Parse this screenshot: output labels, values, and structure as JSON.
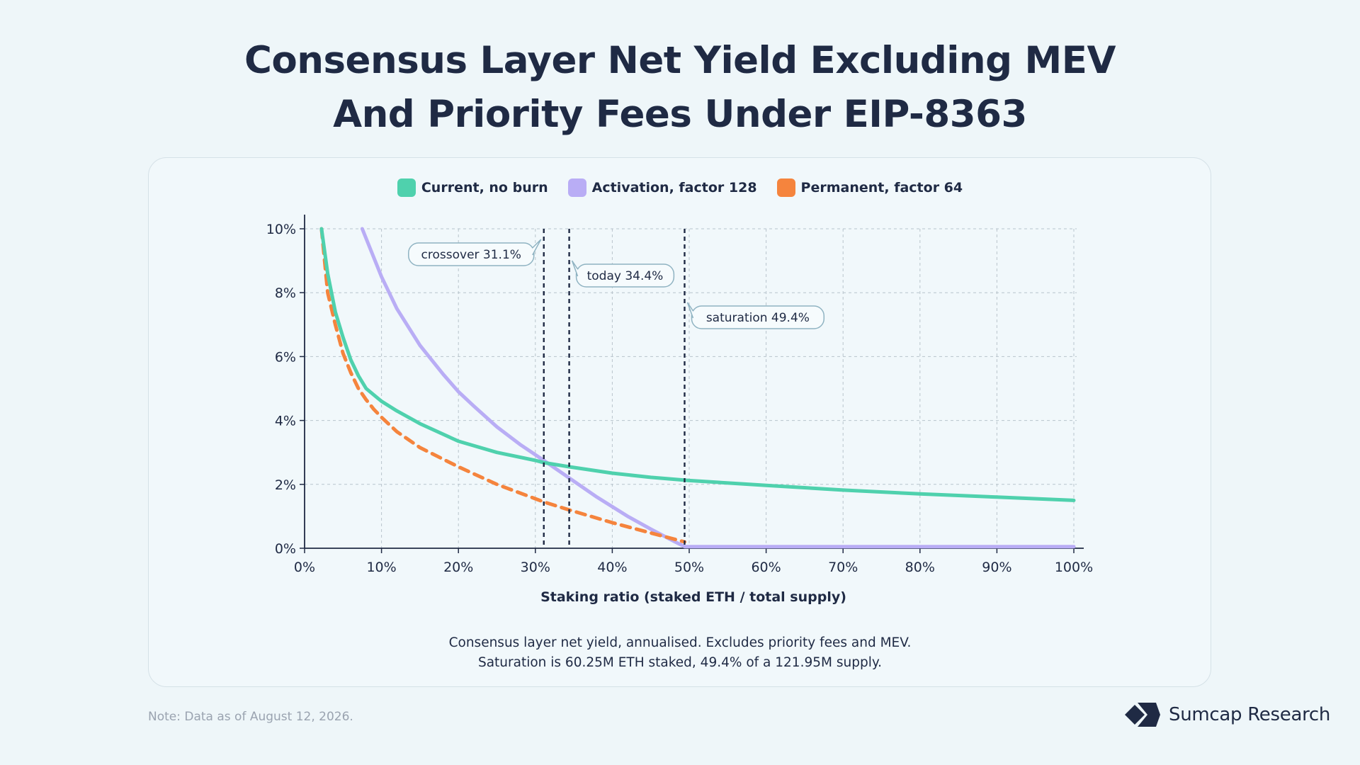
{
  "title": {
    "line1": "Consensus Layer Net Yield Excluding MEV",
    "line2": "And Priority Fees Under EIP-8363"
  },
  "colors": {
    "current": "#4fd1ad",
    "activation": "#b9adf5",
    "permanent": "#f5843d",
    "text": "#1f2a44",
    "grid": "#b8c4cc"
  },
  "chart_data": {
    "type": "line",
    "xlabel": "Staking ratio (staked ETH / total supply)",
    "ylabel": "",
    "x_unit": "%",
    "y_unit": "%",
    "xlim": [
      0,
      100
    ],
    "ylim": [
      0,
      10
    ],
    "xticks": [
      "0%",
      "10%",
      "20%",
      "30%",
      "40%",
      "50%",
      "60%",
      "70%",
      "80%",
      "90%",
      "100%"
    ],
    "yticks": [
      "0%",
      "2%",
      "4%",
      "6%",
      "8%",
      "10%"
    ],
    "grid": true,
    "legend_position": "top-center",
    "series": [
      {
        "name": "Current, no burn",
        "style": "solid",
        "color": "#4fd1ad",
        "x": [
          2.2,
          3,
          4,
          5,
          6,
          7,
          8,
          9,
          10,
          12,
          15,
          20,
          25,
          30,
          31.1,
          34.4,
          40,
          45,
          50,
          60,
          70,
          80,
          90,
          100
        ],
        "y": [
          10,
          8.6,
          7.4,
          6.6,
          5.9,
          5.4,
          5.0,
          4.8,
          4.6,
          4.3,
          3.9,
          3.35,
          3.0,
          2.75,
          2.68,
          2.55,
          2.35,
          2.22,
          2.12,
          1.97,
          1.82,
          1.7,
          1.6,
          1.5
        ]
      },
      {
        "name": "Activation, factor 128",
        "style": "solid",
        "color": "#b9adf5",
        "x": [
          7.5,
          10,
          12,
          15,
          18,
          20,
          22,
          25,
          28,
          31.1,
          34.4,
          38,
          42,
          45,
          48,
          49.4,
          55,
          60,
          70,
          80,
          90,
          100
        ],
        "y": [
          10,
          8.5,
          7.5,
          6.35,
          5.45,
          4.9,
          4.45,
          3.8,
          3.25,
          2.75,
          2.2,
          1.6,
          1.0,
          0.6,
          0.22,
          0.05,
          0.05,
          0.05,
          0.05,
          0.05,
          0.05,
          0.05
        ]
      },
      {
        "name": "Permanent, factor 64",
        "style": "dashed",
        "color": "#f5843d",
        "x": [
          2.2,
          3,
          4,
          5,
          6,
          7,
          8,
          9,
          10,
          12,
          15,
          20,
          25,
          30,
          31.1,
          34.4,
          40,
          45,
          49.4
        ],
        "y": [
          10,
          8.0,
          7.0,
          6.1,
          5.5,
          5.0,
          4.65,
          4.35,
          4.1,
          3.65,
          3.15,
          2.55,
          2.0,
          1.55,
          1.45,
          1.2,
          0.8,
          0.48,
          0.2
        ]
      }
    ],
    "annotations": [
      {
        "label": "crossover 31.1%",
        "x": 31.1,
        "label_side": "left"
      },
      {
        "label": "today 34.4%",
        "x": 34.4,
        "label_side": "right"
      },
      {
        "label": "saturation 49.4%",
        "x": 49.4,
        "label_side": "right"
      }
    ]
  },
  "caption": {
    "line1": "Consensus layer net yield, annualised. Excludes priority fees and MEV.",
    "line2": "Saturation is 60.25M ETH staked, 49.4% of a 121.95M supply."
  },
  "note": "Note: Data as of August 12, 2026.",
  "brand": {
    "name": "Sumcap Research",
    "logo_icon": "sumcap-logo-icon"
  }
}
